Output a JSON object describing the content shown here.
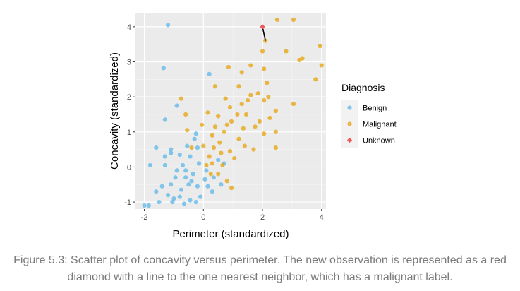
{
  "chart_data": {
    "type": "scatter",
    "title": "",
    "xlabel": "Perimeter (standardized)",
    "ylabel": "Concavity (standardized)",
    "xlim": [
      -2.3,
      4.15
    ],
    "ylim": [
      -1.2,
      4.4
    ],
    "xticks": [
      -2,
      0,
      2,
      4
    ],
    "yticks": [
      -1,
      0,
      1,
      2,
      3,
      4
    ],
    "grid": true,
    "legend": {
      "title": "Diagnosis",
      "position": "right"
    },
    "series": [
      {
        "name": "Benign",
        "color": "#56B4E9",
        "marker": "circle",
        "points": [
          [
            -1.2,
            4.05
          ],
          [
            -1.35,
            2.82
          ],
          [
            0.2,
            2.65
          ],
          [
            -0.9,
            1.75
          ],
          [
            -1.3,
            1.35
          ],
          [
            -1.6,
            0.55
          ],
          [
            -1.1,
            0.5
          ],
          [
            -1.1,
            0.4
          ],
          [
            -1.3,
            0.3
          ],
          [
            -0.45,
            0.3
          ],
          [
            -1.8,
            0.05
          ],
          [
            -1.3,
            0.05
          ],
          [
            -0.8,
            0.35
          ],
          [
            -0.55,
            0.6
          ],
          [
            -0.3,
            0.8
          ],
          [
            -0.2,
            0.55
          ],
          [
            -0.25,
            0.95
          ],
          [
            0.5,
            0.2
          ],
          [
            0.7,
            0.1
          ],
          [
            -1.6,
            -0.7
          ],
          [
            -1.5,
            -1.0
          ],
          [
            -1.2,
            -0.8
          ],
          [
            -2.0,
            -1.1
          ],
          [
            -1.85,
            -1.1
          ],
          [
            -1.1,
            -0.5
          ],
          [
            -0.6,
            -0.3
          ],
          [
            0.1,
            -0.1
          ],
          [
            0.3,
            -0.7
          ],
          [
            0.6,
            -0.5
          ],
          [
            -0.1,
            -0.85
          ],
          [
            -0.2,
            -0.55
          ],
          [
            -0.75,
            -0.65
          ],
          [
            -0.95,
            -0.3
          ],
          [
            -0.45,
            -0.95
          ],
          [
            -1.05,
            -1.0
          ],
          [
            -0.6,
            -0.1
          ],
          [
            -0.35,
            -0.2
          ],
          [
            -0.15,
            0.1
          ],
          [
            0.05,
            -0.35
          ],
          [
            -0.8,
            -0.85
          ],
          [
            -1.4,
            -0.55
          ],
          [
            -0.65,
            -1.05
          ],
          [
            -0.25,
            -1.0
          ],
          [
            0.15,
            -0.55
          ],
          [
            -0.5,
            -0.5
          ],
          [
            -1.0,
            -0.9
          ],
          [
            -0.9,
            -0.1
          ],
          [
            -0.7,
            0.05
          ],
          [
            -0.4,
            -0.4
          ],
          [
            0.35,
            -0.3
          ]
        ]
      },
      {
        "name": "Malignant",
        "color": "#E69F00",
        "marker": "circle",
        "points": [
          [
            2.1,
            3.6
          ],
          [
            2.5,
            4.2
          ],
          [
            3.05,
            4.2
          ],
          [
            2.8,
            3.3
          ],
          [
            2.0,
            3.3
          ],
          [
            3.25,
            3.05
          ],
          [
            3.35,
            3.1
          ],
          [
            3.8,
            2.5
          ],
          [
            3.95,
            3.45
          ],
          [
            4.0,
            2.9
          ],
          [
            2.05,
            2.8
          ],
          [
            2.15,
            2.4
          ],
          [
            1.6,
            2.9
          ],
          [
            1.3,
            2.7
          ],
          [
            0.85,
            2.85
          ],
          [
            0.4,
            2.3
          ],
          [
            1.2,
            2.3
          ],
          [
            1.85,
            2.1
          ],
          [
            2.2,
            2.0
          ],
          [
            2.05,
            1.9
          ],
          [
            1.3,
            1.8
          ],
          [
            1.45,
            1.5
          ],
          [
            0.75,
            1.95
          ],
          [
            0.15,
            1.55
          ],
          [
            -0.75,
            1.95
          ],
          [
            -0.6,
            1.5
          ],
          [
            0.5,
            1.45
          ],
          [
            0.8,
            1.2
          ],
          [
            1.9,
            1.3
          ],
          [
            2.25,
            1.4
          ],
          [
            2.45,
            1.6
          ],
          [
            2.45,
            1.0
          ],
          [
            3.05,
            1.8
          ],
          [
            2.45,
            0.55
          ],
          [
            1.7,
            0.5
          ],
          [
            1.2,
            0.8
          ],
          [
            0.9,
            0.45
          ],
          [
            0.3,
            0.9
          ],
          [
            0.55,
            0.7
          ],
          [
            0.0,
            0.6
          ],
          [
            -0.55,
            1.05
          ],
          [
            -0.4,
            0.55
          ],
          [
            0.2,
            0.3
          ],
          [
            0.6,
            0.4
          ],
          [
            1.05,
            0.25
          ],
          [
            1.35,
            1.1
          ],
          [
            1.75,
            1.15
          ],
          [
            2.05,
            0.95
          ],
          [
            1.15,
            1.5
          ],
          [
            0.7,
            1.0
          ],
          [
            0.4,
            1.15
          ],
          [
            0.9,
            1.7
          ],
          [
            1.6,
            2.05
          ],
          [
            0.1,
            0.05
          ],
          [
            0.95,
            -0.6
          ],
          [
            0.8,
            -0.4
          ],
          [
            0.25,
            -0.2
          ],
          [
            0.5,
            -0.2
          ],
          [
            0.3,
            0.1
          ],
          [
            1.4,
            0.6
          ],
          [
            0.95,
            1.3
          ],
          [
            1.5,
            1.9
          ],
          [
            -0.05,
            1.2
          ],
          [
            0.65,
            0.05
          ],
          [
            0.35,
            0.55
          ]
        ]
      },
      {
        "name": "Unknown",
        "color": "#F05A5A",
        "marker": "diamond",
        "points": [
          [
            2.0,
            4.0
          ]
        ]
      }
    ],
    "annotations": [
      {
        "type": "segment",
        "from": [
          2.0,
          4.0
        ],
        "to": [
          2.1,
          3.6
        ],
        "color": "#000000",
        "description": "nearest neighbor line"
      }
    ]
  },
  "caption": "Figure 5.3: Scatter plot of concavity versus perimeter. The new observation is represented as a red diamond with a line to the one nearest neighbor, which has a malignant label."
}
